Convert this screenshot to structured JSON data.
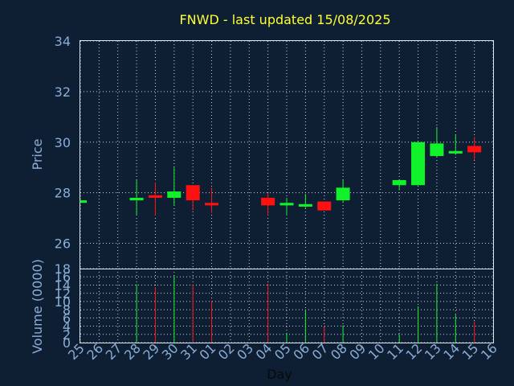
{
  "chart_data": [
    {
      "type": "candlestick",
      "title": "FNWD - last updated 15/08/2025",
      "ylabel": "Price",
      "ylim": [
        25,
        34
      ],
      "yticks": [
        26,
        28,
        30,
        32,
        34
      ],
      "grid": true,
      "colors": {
        "up": "#11f22b",
        "down": "#ff1111",
        "title": "#ffff33",
        "text": "#8aaed8"
      },
      "x": [
        "25",
        "26",
        "27",
        "28",
        "29",
        "30",
        "31",
        "01",
        "02",
        "03",
        "04",
        "05",
        "06",
        "07",
        "08",
        "09",
        "10",
        "11",
        "12",
        "13",
        "14",
        "15",
        "16"
      ],
      "candles": [
        {
          "x": "25",
          "open": 27.6,
          "high": 27.7,
          "low": 27.6,
          "close": 27.7
        },
        {
          "x": "28",
          "open": 27.7,
          "high": 28.5,
          "low": 27.1,
          "close": 27.8
        },
        {
          "x": "29",
          "open": 27.9,
          "high": 28.4,
          "low": 27.1,
          "close": 27.8
        },
        {
          "x": "30",
          "open": 27.8,
          "high": 29.0,
          "low": 27.5,
          "close": 28.05
        },
        {
          "x": "31",
          "open": 28.3,
          "high": 28.3,
          "low": 27.3,
          "close": 27.7
        },
        {
          "x": "01",
          "open": 27.6,
          "high": 28.2,
          "low": 27.2,
          "close": 27.5
        },
        {
          "x": "04",
          "open": 27.8,
          "high": 28.0,
          "low": 27.1,
          "close": 27.5
        },
        {
          "x": "05",
          "open": 27.5,
          "high": 27.8,
          "low": 27.1,
          "close": 27.6
        },
        {
          "x": "06",
          "open": 27.45,
          "high": 27.95,
          "low": 27.4,
          "close": 27.55
        },
        {
          "x": "07",
          "open": 27.65,
          "high": 27.65,
          "low": 27.3,
          "close": 27.3
        },
        {
          "x": "08",
          "open": 27.7,
          "high": 28.5,
          "low": 27.6,
          "close": 28.2
        },
        {
          "x": "11",
          "open": 28.3,
          "high": 28.5,
          "low": 28.1,
          "close": 28.5
        },
        {
          "x": "12",
          "open": 28.3,
          "high": 30.0,
          "low": 28.3,
          "close": 30.0
        },
        {
          "x": "13",
          "open": 29.45,
          "high": 30.6,
          "low": 29.4,
          "close": 29.95
        },
        {
          "x": "14",
          "open": 29.55,
          "high": 30.3,
          "low": 29.5,
          "close": 29.65
        },
        {
          "x": "15",
          "open": 29.85,
          "high": 30.2,
          "low": 29.3,
          "close": 29.6
        }
      ]
    },
    {
      "type": "bar",
      "ylabel": "Volume (0000)",
      "xlabel": "Day",
      "ylim": [
        0,
        18
      ],
      "yticks": [
        0,
        2,
        4,
        6,
        8,
        10,
        12,
        14,
        16,
        18
      ],
      "grid": true,
      "x": [
        "25",
        "26",
        "27",
        "28",
        "29",
        "30",
        "31",
        "01",
        "02",
        "03",
        "04",
        "05",
        "06",
        "07",
        "08",
        "09",
        "10",
        "11",
        "12",
        "13",
        "14",
        "15",
        "16"
      ],
      "bars": [
        {
          "x": "25",
          "value": 0.3,
          "dir": "up"
        },
        {
          "x": "28",
          "value": 14.2,
          "dir": "up"
        },
        {
          "x": "29",
          "value": 13.5,
          "dir": "down"
        },
        {
          "x": "30",
          "value": 16.2,
          "dir": "up"
        },
        {
          "x": "31",
          "value": 14.0,
          "dir": "down"
        },
        {
          "x": "01",
          "value": 10.2,
          "dir": "down"
        },
        {
          "x": "04",
          "value": 14.3,
          "dir": "down"
        },
        {
          "x": "05",
          "value": 2.4,
          "dir": "up"
        },
        {
          "x": "06",
          "value": 7.8,
          "dir": "up"
        },
        {
          "x": "07",
          "value": 3.8,
          "dir": "down"
        },
        {
          "x": "08",
          "value": 4.2,
          "dir": "up"
        },
        {
          "x": "11",
          "value": 2.0,
          "dir": "up"
        },
        {
          "x": "12",
          "value": 8.8,
          "dir": "up"
        },
        {
          "x": "13",
          "value": 14.3,
          "dir": "up"
        },
        {
          "x": "14",
          "value": 6.8,
          "dir": "up"
        },
        {
          "x": "15",
          "value": 5.2,
          "dir": "down"
        }
      ]
    }
  ]
}
